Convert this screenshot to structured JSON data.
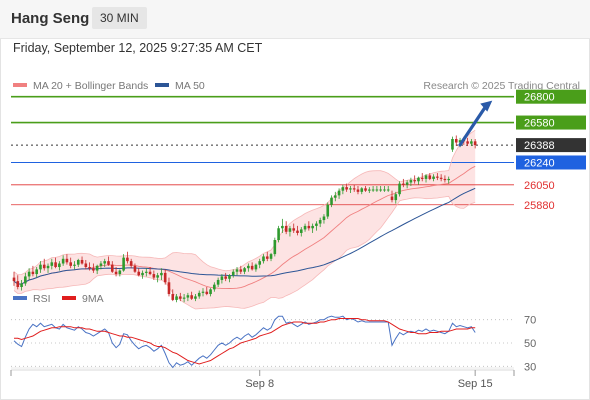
{
  "header": {
    "symbol": "Hang Seng",
    "interval": "30 MIN"
  },
  "datetime": "Friday, September 12, 2025 9:27:35 AM CET",
  "legend": {
    "bollinger": {
      "label": "MA 20 + Bollinger Bands",
      "color": "#f08080"
    },
    "ma50": {
      "label": "MA 50",
      "color": "#2c5596"
    }
  },
  "credit": "Research © 2025 Trading Central",
  "rsi_legend": {
    "rsi": {
      "label": "RSI",
      "color": "#4a73c4"
    },
    "ma9": {
      "label": "9MA",
      "color": "#e01e1e"
    }
  },
  "chart_data": [
    {
      "type": "candlestick",
      "ylim": [
        25180,
        26840
      ],
      "x_ticks": [
        {
          "label": "Sep 8",
          "index": 65
        },
        {
          "label": "Sep 15",
          "index": 122
        }
      ],
      "levels": [
        {
          "label": "26800",
          "value": 26800,
          "color": "#4a9e1a",
          "style": "resistance",
          "text_color": "#ffffff"
        },
        {
          "label": "26580",
          "value": 26580,
          "color": "#4a9e1a",
          "style": "resistance",
          "text_color": "#ffffff"
        },
        {
          "label": "26388",
          "value": 26388,
          "color": "#333333",
          "style": "last",
          "text_color": "#ffffff"
        },
        {
          "label": "26240",
          "value": 26240,
          "color": "#1f62e0",
          "style": "pivot",
          "text_color": "#ffffff"
        },
        {
          "label": "26050",
          "value": 26050,
          "color": "#e03030",
          "style": "support",
          "text_color": "#e03030"
        },
        {
          "label": "25880",
          "value": 25880,
          "color": "#e03030",
          "style": "support",
          "text_color": "#e03030"
        }
      ],
      "arrow": {
        "from": [
          118,
          26390
        ],
        "to": [
          126,
          26750
        ],
        "color": "#2a5aa8"
      },
      "ohlc": [
        [
          25260,
          25310,
          25190,
          25230
        ],
        [
          25230,
          25280,
          25160,
          25180
        ],
        [
          25180,
          25240,
          25150,
          25210
        ],
        [
          25210,
          25300,
          25190,
          25270
        ],
        [
          25270,
          25340,
          25240,
          25310
        ],
        [
          25310,
          25360,
          25270,
          25290
        ],
        [
          25290,
          25350,
          25260,
          25330
        ],
        [
          25330,
          25400,
          25300,
          25370
        ],
        [
          25370,
          25420,
          25320,
          25340
        ],
        [
          25340,
          25380,
          25300,
          25360
        ],
        [
          25360,
          25420,
          25330,
          25390
        ],
        [
          25390,
          25430,
          25340,
          25350
        ],
        [
          25350,
          25400,
          25320,
          25380
        ],
        [
          25380,
          25450,
          25360,
          25420
        ],
        [
          25420,
          25460,
          25370,
          25390
        ],
        [
          25390,
          25430,
          25340,
          25360
        ],
        [
          25360,
          25400,
          25330,
          25370
        ],
        [
          25370,
          25420,
          25350,
          25410
        ],
        [
          25410,
          25440,
          25370,
          25380
        ],
        [
          25380,
          25410,
          25330,
          25350
        ],
        [
          25350,
          25390,
          25320,
          25340
        ],
        [
          25340,
          25380,
          25300,
          25320
        ],
        [
          25320,
          25370,
          25290,
          25360
        ],
        [
          25360,
          25400,
          25330,
          25380
        ],
        [
          25380,
          25420,
          25350,
          25400
        ],
        [
          25400,
          25440,
          25360,
          25370
        ],
        [
          25370,
          25400,
          25300,
          25310
        ],
        [
          25310,
          25350,
          25270,
          25290
        ],
        [
          25290,
          25330,
          25270,
          25320
        ],
        [
          25320,
          25460,
          25310,
          25430
        ],
        [
          25430,
          25480,
          25380,
          25400
        ],
        [
          25400,
          25420,
          25340,
          25360
        ],
        [
          25360,
          25380,
          25300,
          25310
        ],
        [
          25310,
          25340,
          25270,
          25280
        ],
        [
          25280,
          25320,
          25250,
          25300
        ],
        [
          25300,
          25340,
          25270,
          25310
        ],
        [
          25310,
          25350,
          25280,
          25290
        ],
        [
          25290,
          25320,
          25240,
          25260
        ],
        [
          25260,
          25300,
          25220,
          25280
        ],
        [
          25280,
          25340,
          25240,
          25300
        ],
        [
          25300,
          25330,
          25200,
          25220
        ],
        [
          25220,
          25260,
          25100,
          25120
        ],
        [
          25120,
          25160,
          25060,
          25070
        ],
        [
          25070,
          25120,
          25050,
          25100
        ],
        [
          25100,
          25130,
          25060,
          25080
        ],
        [
          25080,
          25120,
          25050,
          25090
        ],
        [
          25090,
          25130,
          25060,
          25110
        ],
        [
          25110,
          25140,
          25070,
          25080
        ],
        [
          25080,
          25120,
          25060,
          25100
        ],
        [
          25100,
          25150,
          25080,
          25130
        ],
        [
          25130,
          25170,
          25100,
          25140
        ],
        [
          25140,
          25180,
          25110,
          25120
        ],
        [
          25120,
          25170,
          25100,
          25160
        ],
        [
          25160,
          25220,
          25140,
          25200
        ],
        [
          25200,
          25260,
          25180,
          25240
        ],
        [
          25240,
          25290,
          25210,
          25270
        ],
        [
          25270,
          25300,
          25230,
          25250
        ],
        [
          25250,
          25290,
          25220,
          25280
        ],
        [
          25280,
          25330,
          25260,
          25310
        ],
        [
          25310,
          25350,
          25280,
          25330
        ],
        [
          25330,
          25360,
          25290,
          25310
        ],
        [
          25310,
          25350,
          25290,
          25340
        ],
        [
          25340,
          25380,
          25310,
          25360
        ],
        [
          25360,
          25390,
          25320,
          25330
        ],
        [
          25330,
          25380,
          25310,
          25370
        ],
        [
          25370,
          25420,
          25340,
          25400
        ],
        [
          25400,
          25460,
          25380,
          25440
        ],
        [
          25440,
          25480,
          25400,
          25420
        ],
        [
          25420,
          25470,
          25400,
          25460
        ],
        [
          25460,
          25600,
          25440,
          25580
        ],
        [
          25580,
          25700,
          25560,
          25680
        ],
        [
          25680,
          25760,
          25640,
          25700
        ],
        [
          25700,
          25740,
          25630,
          25650
        ],
        [
          25650,
          25700,
          25610,
          25680
        ],
        [
          25680,
          25720,
          25640,
          25660
        ],
        [
          25660,
          25700,
          25620,
          25640
        ],
        [
          25640,
          25690,
          25610,
          25670
        ],
        [
          25670,
          25720,
          25650,
          25700
        ],
        [
          25700,
          25740,
          25660,
          25680
        ],
        [
          25680,
          25720,
          25640,
          25700
        ],
        [
          25700,
          25740,
          25660,
          25720
        ],
        [
          25720,
          25770,
          25690,
          25750
        ],
        [
          25750,
          25800,
          25720,
          25780
        ],
        [
          25780,
          25900,
          25760,
          25880
        ],
        [
          25880,
          25960,
          25860,
          25940
        ],
        [
          25940,
          25990,
          25910,
          25960
        ],
        [
          25960,
          26020,
          25930,
          26000
        ],
        [
          26000,
          26050,
          25970,
          26030
        ],
        [
          26030,
          26060,
          25990,
          26010
        ],
        [
          26010,
          26040,
          25980,
          26020
        ],
        [
          26020,
          26050,
          25990,
          26010
        ],
        [
          26010,
          26040,
          25970,
          25990
        ],
        [
          25990,
          26030,
          25970,
          26020
        ],
        [
          26020,
          26040,
          25990,
          26000
        ],
        [
          26000,
          26030,
          25980,
          26010
        ],
        [
          26010,
          26040,
          25990,
          26010
        ],
        [
          26010,
          26040,
          25990,
          26010
        ],
        [
          26010,
          26040,
          25990,
          26010
        ],
        [
          26010,
          26040,
          25990,
          26010
        ],
        [
          26010,
          26040,
          25990,
          26010
        ],
        [
          25950,
          26000,
          25900,
          25920
        ],
        [
          25920,
          25990,
          25890,
          25970
        ],
        [
          25970,
          26080,
          25950,
          26060
        ],
        [
          26060,
          26100,
          26030,
          26050
        ],
        [
          26050,
          26090,
          26020,
          26070
        ],
        [
          26070,
          26110,
          26040,
          26090
        ],
        [
          26090,
          26130,
          26060,
          26080
        ],
        [
          26080,
          26120,
          26050,
          26110
        ],
        [
          26110,
          26150,
          26080,
          26100
        ],
        [
          26100,
          26140,
          26070,
          26130
        ],
        [
          26130,
          26150,
          26090,
          26100
        ],
        [
          26100,
          26140,
          26080,
          26120
        ],
        [
          26120,
          26150,
          26090,
          26110
        ],
        [
          26110,
          26140,
          26080,
          26100
        ],
        [
          26100,
          26130,
          26070,
          26090
        ],
        [
          26090,
          26120,
          26060,
          26100
        ],
        [
          26350,
          26460,
          26330,
          26440
        ],
        [
          26440,
          26470,
          26380,
          26410
        ],
        [
          26410,
          26450,
          26370,
          26430
        ],
        [
          26430,
          26460,
          26390,
          26420
        ],
        [
          26420,
          26450,
          26380,
          26400
        ],
        [
          26400,
          26440,
          26380,
          26420
        ],
        [
          26420,
          26440,
          26360,
          26388
        ]
      ]
    },
    {
      "type": "line",
      "name": "RSI",
      "ylim": [
        20,
        80
      ],
      "ticks": [
        70,
        50,
        30
      ],
      "series": [
        {
          "name": "RSI",
          "color": "#4a73c4",
          "values": [
            52,
            49,
            47,
            55,
            62,
            66,
            64,
            67,
            64,
            65,
            66,
            63,
            62,
            66,
            63,
            62,
            61,
            64,
            62,
            59,
            58,
            56,
            58,
            60,
            62,
            59,
            50,
            46,
            49,
            58,
            57,
            52,
            48,
            45,
            47,
            48,
            46,
            43,
            45,
            48,
            41,
            33,
            29,
            33,
            31,
            32,
            34,
            31,
            34,
            37,
            39,
            37,
            40,
            44,
            48,
            50,
            48,
            50,
            53,
            55,
            53,
            56,
            58,
            55,
            57,
            60,
            63,
            61,
            63,
            70,
            73,
            73,
            67,
            68,
            66,
            64,
            66,
            68,
            66,
            67,
            68,
            70,
            70,
            72,
            73,
            72,
            72,
            73,
            70,
            71,
            70,
            68,
            69,
            68,
            68,
            68,
            68,
            68,
            68,
            68,
            48,
            54,
            59,
            57,
            59,
            60,
            59,
            61,
            60,
            62,
            60,
            61,
            60,
            59,
            58,
            60,
            67,
            64,
            65,
            64,
            63,
            64,
            59
          ]
        },
        {
          "name": "9MA",
          "color": "#e01e1e",
          "values": [
            54,
            54,
            53,
            54,
            55,
            56,
            58,
            60,
            61,
            62,
            63,
            63,
            64,
            64,
            64,
            64,
            63,
            63,
            63,
            62,
            62,
            61,
            60,
            60,
            60,
            59,
            58,
            57,
            56,
            56,
            55,
            55,
            54,
            53,
            52,
            51,
            50,
            48,
            47,
            47,
            46,
            44,
            42,
            41,
            39,
            37,
            35,
            34,
            33,
            32,
            33,
            34,
            35,
            37,
            39,
            41,
            43,
            45,
            46,
            48,
            50,
            51,
            52,
            53,
            54,
            56,
            57,
            58,
            59,
            61,
            63,
            65,
            66,
            67,
            68,
            68,
            68,
            67,
            67,
            67,
            67,
            68,
            68,
            69,
            70,
            70,
            71,
            71,
            71,
            71,
            71,
            71,
            70,
            70,
            69,
            69,
            69,
            69,
            69,
            68,
            66,
            64,
            62,
            61,
            60,
            59,
            59,
            58,
            58,
            58,
            59,
            59,
            59,
            60,
            60,
            60,
            61,
            62,
            62,
            62,
            62,
            63,
            63
          ]
        }
      ]
    }
  ]
}
